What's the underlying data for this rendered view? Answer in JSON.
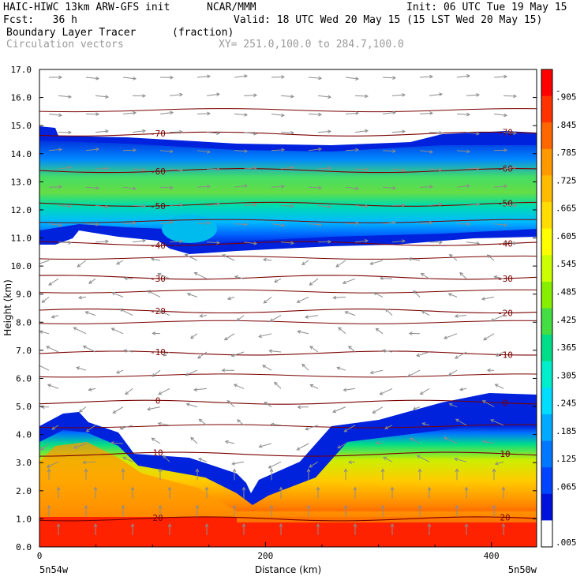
{
  "header": {
    "line1_left": "HAIC-HIWC 13km ARW-GFS init",
    "line1_mid": "NCAR/MMM",
    "line1_right": "Init: 06 UTC Tue 19 May 15",
    "line2_left": "Fcst:   36 h",
    "line2_right": "Valid: 18 UTC Wed 20 May 15 (15 LST Wed 20 May 15)",
    "field_name": "Boundary Layer Tracer",
    "field_units": "(fraction)",
    "vector_label": "Circulation vectors",
    "xy_label": "XY= 251.0,100.0 to 284.7,100.0"
  },
  "chart_data": {
    "type": "heatmap",
    "title": "Boundary Layer Tracer (fraction)",
    "xlabel": "Distance (km)",
    "ylabel": "Height (km)",
    "xlim": [
      0,
      440
    ],
    "ylim": [
      0,
      17
    ],
    "x_ticks": [
      0,
      200,
      400
    ],
    "y_ticks": [
      "0.0",
      "1.0",
      "2.0",
      "3.0",
      "4.0",
      "5.0",
      "6.0",
      "7.0",
      "8.0",
      "9.0",
      "10.0",
      "11.0",
      "12.0",
      "13.0",
      "14.0",
      "15.0",
      "16.0",
      "17.0"
    ],
    "x_end_labels": [
      "5n54w",
      "5n50w"
    ],
    "colorbar": {
      "labels": [
        "-",
        ".905",
        ".845",
        ".785",
        ".725",
        ".665",
        ".605",
        ".545",
        ".485",
        ".425",
        ".365",
        ".305",
        ".245",
        ".185",
        ".125",
        ".065",
        ".005"
      ],
      "colors": [
        "#ff0000",
        "#ff3300",
        "#ff6600",
        "#ff9900",
        "#ffbb00",
        "#ffdd00",
        "#ffff00",
        "#ccff00",
        "#88ee00",
        "#44dd44",
        "#00dd88",
        "#00eecc",
        "#00ddff",
        "#00aaff",
        "#0077ff",
        "#0044ff",
        "#0011dd",
        "#ffffff"
      ]
    },
    "tracer_layers": [
      {
        "name": "boundary layer",
        "from_km": 0,
        "to_km": 4.5,
        "peak_fraction": 0.905
      },
      {
        "name": "upper plume",
        "from_km": 10.7,
        "to_km": 14.8,
        "peak_fraction": 0.365
      }
    ],
    "temperature_contours": [
      {
        "label": "20",
        "height_km": 1.0
      },
      {
        "label": "10",
        "height_km": 3.3
      },
      {
        "label": "0",
        "height_km": 5.15
      },
      {
        "label": "-10",
        "height_km": 6.9
      },
      {
        "label": "-20",
        "height_km": 8.4
      },
      {
        "label": "-30",
        "height_km": 9.6
      },
      {
        "label": "-40",
        "height_km": 10.8
      },
      {
        "label": "-50",
        "height_km": 12.2
      },
      {
        "label": "-60",
        "height_km": 13.4
      },
      {
        "label": "-70",
        "height_km": 14.7
      }
    ]
  }
}
